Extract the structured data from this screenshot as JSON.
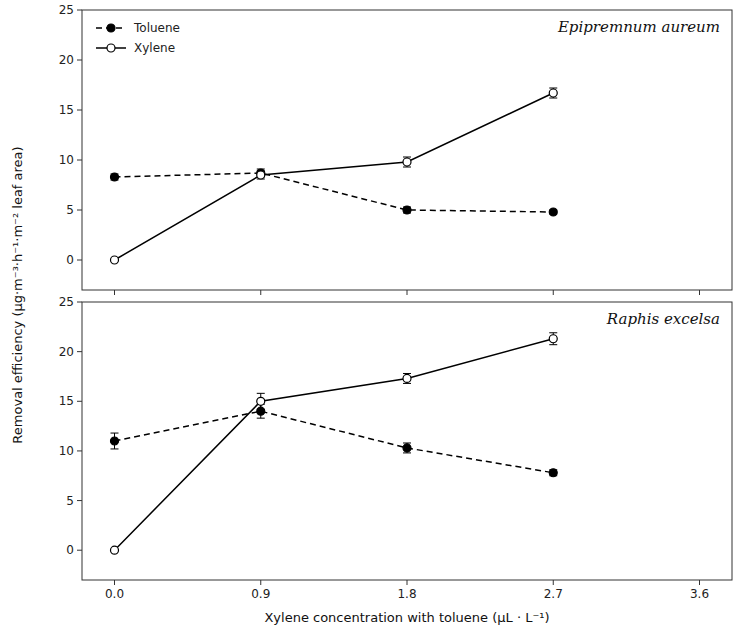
{
  "chart_data": [
    {
      "type": "line",
      "title": "Epipremnum aureum",
      "ylabel": "Removal efficiency (μg·m⁻³·h⁻¹·m⁻² leaf area)",
      "x": [
        0.0,
        0.9,
        1.8,
        2.7
      ],
      "xlim": [
        -0.2,
        3.8
      ],
      "xticks": [
        0,
        0.9,
        1.8,
        2.7,
        3.6
      ],
      "ylim": [
        -3,
        25
      ],
      "yticks": [
        0,
        5,
        10,
        15,
        20,
        25
      ],
      "tick_labels": "y",
      "grid": false,
      "legend": "upper left",
      "series": [
        {
          "name": "Toluene",
          "color": "black",
          "marker": "circle",
          "line_style": "dashed",
          "values": [
            8.3,
            8.7,
            5.0,
            4.8
          ],
          "errors": [
            0.3,
            0.4,
            0.3,
            0.2
          ]
        },
        {
          "name": "Xylene",
          "color": "black",
          "marker": "open-circle",
          "line_style": "solid",
          "values": [
            0.0,
            8.5,
            9.8,
            16.7
          ],
          "errors": [
            0.05,
            0.4,
            0.5,
            0.5
          ]
        }
      ]
    },
    {
      "type": "line",
      "title": "Raphis excelsa",
      "xlabel": "Xylene concentration with toluene (μL ·  L⁻¹)",
      "x": [
        0.0,
        0.9,
        1.8,
        2.7
      ],
      "xlim": [
        -0.2,
        3.8
      ],
      "xticks": [
        {
          "value": 0,
          "label": "0.0"
        },
        0.9,
        1.8,
        2.7,
        3.6
      ],
      "ylim": [
        -3,
        25
      ],
      "yticks": [
        0,
        5,
        10,
        15,
        20,
        25
      ],
      "grid": false,
      "series": [
        {
          "color": "black",
          "marker": "circle",
          "line_style": "dashed",
          "values": [
            11.0,
            14.0,
            10.3,
            7.8
          ],
          "errors": [
            0.8,
            0.7,
            0.5,
            0.3
          ]
        },
        {
          "color": "black",
          "marker": "open-circle",
          "line_style": "solid",
          "values": [
            0.0,
            15.0,
            17.3,
            21.3
          ],
          "errors": [
            0.05,
            0.8,
            0.5,
            0.6
          ]
        }
      ]
    }
  ]
}
